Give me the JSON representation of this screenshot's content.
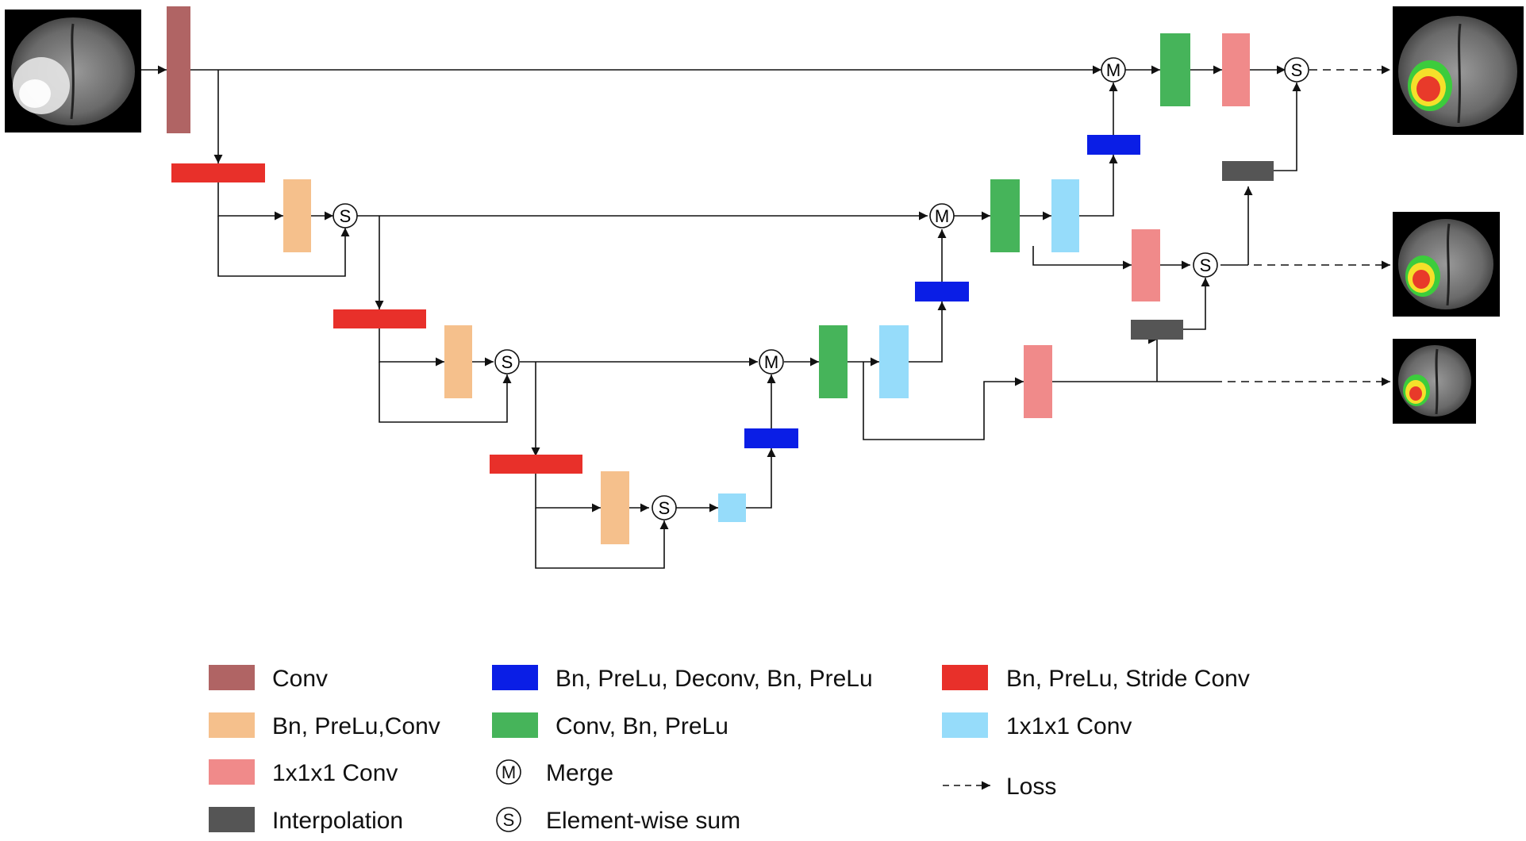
{
  "colors": {
    "conv": "#b06464",
    "bn_prelu_conv": "#f5c08c",
    "conv1x1_red": "#f08a8a",
    "interp": "#555555",
    "deconv": "#0a1ee6",
    "conv_bn_prelu": "#46b45a",
    "stride_conv": "#e8302a",
    "conv1x1_cyan": "#96dcfa",
    "line": "#111111"
  },
  "symbols": {
    "merge": "M",
    "sum": "S"
  },
  "legend": {
    "col1": [
      {
        "key": "conv",
        "label": "Conv"
      },
      {
        "key": "bn_prelu_conv",
        "label": "Bn, PreLu,Conv"
      },
      {
        "key": "conv1x1_red",
        "label": "1x1x1 Conv"
      },
      {
        "key": "interp",
        "label": "Interpolation"
      }
    ],
    "col2": [
      {
        "key": "deconv",
        "label": "Bn, PreLu, Deconv, Bn, PreLu"
      },
      {
        "key": "conv_bn_prelu",
        "label": "Conv, Bn, PreLu"
      },
      {
        "key": "merge",
        "label": "Merge"
      },
      {
        "key": "sum",
        "label": "Element-wise sum"
      }
    ],
    "col3": [
      {
        "key": "stride_conv",
        "label": "Bn, PreLu, Stride Conv"
      },
      {
        "key": "conv1x1_cyan",
        "label": "1x1x1 Conv"
      },
      {
        "key": "loss",
        "label": "Loss"
      }
    ]
  }
}
